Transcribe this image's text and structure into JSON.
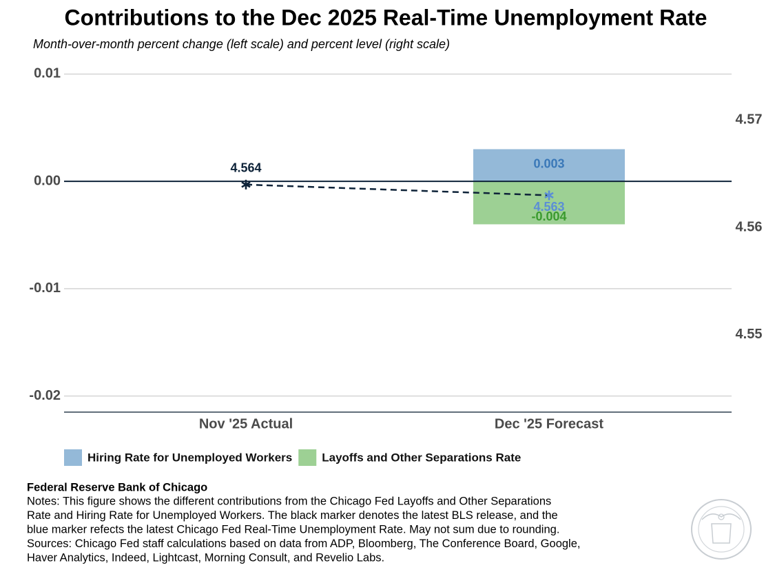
{
  "chart_data": {
    "type": "bar",
    "title": "Contributions to the Dec 2025 Real-Time Unemployment Rate",
    "subtitle": "Month-over-month percent change (left scale) and percent level (right scale)",
    "categories": [
      "Nov '25 Actual",
      "Dec '25 Forecast"
    ],
    "series": [
      {
        "name": "Hiring Rate for Unemployed Workers",
        "color": "#94b9d8",
        "label_color": "#3a78b8",
        "values": [
          null,
          0.003
        ]
      },
      {
        "name": "Layoffs and Other Separations Rate",
        "color": "#9dd094",
        "label_color": "#3a9a2e",
        "values": [
          null,
          -0.004
        ]
      },
      {
        "type": "line",
        "axis": "y2",
        "color": "#0d2238",
        "marker_colors": [
          "#0d2238",
          "#5b8ed6"
        ],
        "values": [
          4.564,
          4.563
        ]
      }
    ],
    "stacked": true,
    "ylim": [
      -0.0215,
      0.0108
    ],
    "yticks": [
      {
        "value": 0.01,
        "label": "0.01"
      },
      {
        "value": 0,
        "label": "0.00"
      },
      -0.01,
      -0.02
    ],
    "y2lim": [
      4.5428,
      4.5751
    ],
    "y2ticks": [
      4.57,
      4.56,
      4.55
    ],
    "grid": true,
    "legend": "bottom",
    "source": {
      "org": "Federal Reserve Bank of Chicago",
      "lines": [
        "Notes: This figure shows the different contributions from the Chicago Fed Layoffs and Other Separations",
        "Rate and Hiring Rate for Unemployed Workers. The black marker denotes the latest BLS release, and the",
        "blue marker refects the latest Chicago Fed Real-Time Unemployment Rate. May not sum due to rounding.",
        "Sources: Chicago Fed staff calculations based on data from ADP, Bloomberg, The Conference Board, Google,",
        "Haver Analytics, Indeed, Lightcast, Morning Consult, and Revelio Labs."
      ]
    }
  }
}
